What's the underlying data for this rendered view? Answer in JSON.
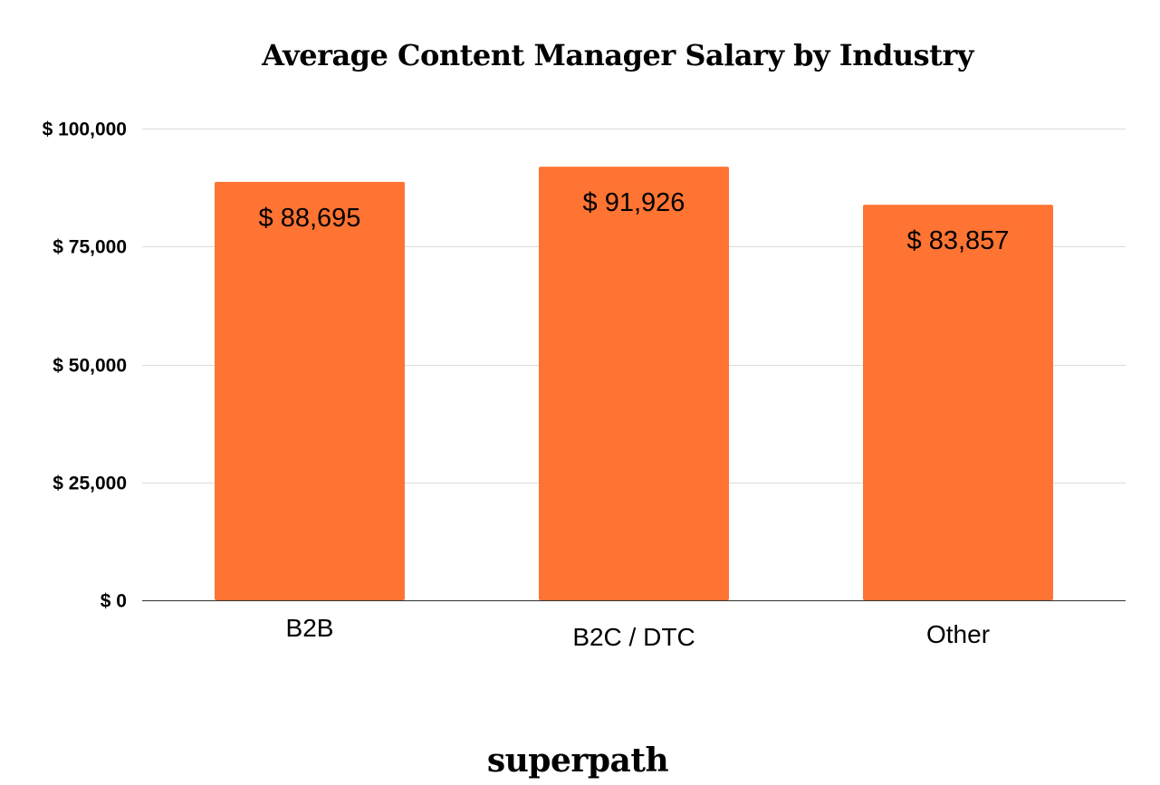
{
  "chart_data": {
    "type": "bar",
    "title": "Average Content Manager Salary by Industry",
    "xlabel": "",
    "ylabel": "",
    "categories": [
      "B2B",
      "B2C / DTC",
      "Other"
    ],
    "values": [
      88695,
      91926,
      83857
    ],
    "data_labels": [
      "$ 88,695",
      "$ 91,926",
      "$ 83,857"
    ],
    "ylim": [
      0,
      100000
    ],
    "yticks": [
      0,
      25000,
      50000,
      75000,
      100000
    ],
    "ytick_labels": [
      "$ 0",
      "$ 25,000",
      "$ 50,000",
      "$ 75,000",
      "$ 100,000"
    ],
    "grid": true,
    "legend": "none",
    "bar_color": "#FF7433"
  },
  "footer": {
    "brand": "superpath"
  }
}
